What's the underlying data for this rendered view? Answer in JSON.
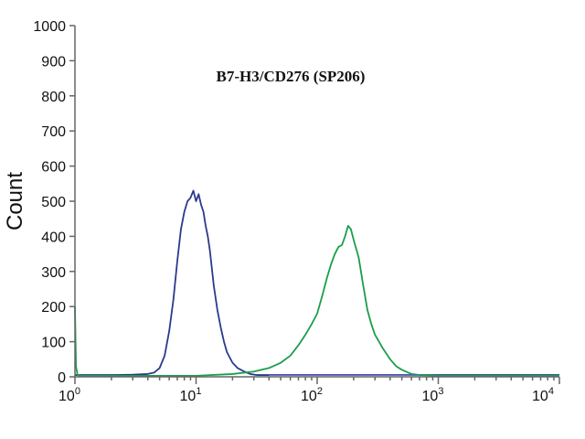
{
  "chart_data": {
    "type": "line",
    "title": "B7-H3/CD276 (SP206)",
    "xlabel": "",
    "ylabel": "Count",
    "x_scale": "log",
    "xlim": [
      1,
      10000
    ],
    "ylim": [
      0,
      1000
    ],
    "y_ticks": [
      0,
      100,
      200,
      300,
      400,
      500,
      600,
      700,
      800,
      900,
      1000
    ],
    "y_tick_labels": [
      "0",
      "100",
      "200",
      "300",
      "400",
      "500",
      "600",
      "700",
      "800",
      "900",
      "1000"
    ],
    "x_ticks": [
      1,
      10,
      100,
      1000,
      10000
    ],
    "x_tick_labels": [
      {
        "base": "10",
        "exp": "0"
      },
      {
        "base": "10",
        "exp": "1"
      },
      {
        "base": "10",
        "exp": "2"
      },
      {
        "base": "10",
        "exp": "3"
      },
      {
        "base": "10",
        "exp": "4"
      }
    ],
    "grid": false,
    "legend": "none",
    "series": [
      {
        "color": "#2b3a8c",
        "x": [
          1,
          2,
          3,
          4,
          4.5,
          5,
          5.5,
          6,
          6.5,
          7,
          7.5,
          8,
          8.5,
          9,
          9.5,
          10,
          10.5,
          11,
          11.5,
          12,
          12.5,
          13,
          14,
          15,
          16,
          17,
          18,
          20,
          22,
          25,
          28,
          32,
          40,
          60,
          100,
          1000,
          10000
        ],
        "y": [
          5,
          5,
          6,
          8,
          12,
          25,
          60,
          130,
          220,
          330,
          420,
          470,
          500,
          510,
          530,
          500,
          520,
          490,
          470,
          430,
          400,
          360,
          260,
          190,
          140,
          100,
          70,
          40,
          25,
          15,
          8,
          5,
          5,
          5,
          5,
          5,
          5
        ]
      },
      {
        "color": "#1a9e4a",
        "x": [
          1,
          1.02,
          1.05,
          1.1,
          2,
          5,
          10,
          20,
          30,
          40,
          50,
          60,
          70,
          80,
          90,
          100,
          110,
          120,
          130,
          140,
          150,
          160,
          170,
          180,
          190,
          200,
          220,
          240,
          260,
          280,
          300,
          350,
          400,
          450,
          500,
          600,
          700,
          1000,
          10000
        ],
        "y": [
          200,
          30,
          5,
          3,
          3,
          3,
          3,
          8,
          15,
          25,
          40,
          60,
          90,
          120,
          150,
          180,
          230,
          280,
          320,
          350,
          370,
          375,
          400,
          430,
          420,
          390,
          340,
          260,
          190,
          150,
          120,
          80,
          50,
          30,
          20,
          8,
          5,
          3,
          3
        ]
      },
      {
        "color": "#6a6ad8",
        "x": [
          40,
          60,
          100,
          200,
          400,
          700
        ],
        "y": [
          4,
          4,
          4,
          4,
          4,
          4
        ]
      }
    ]
  }
}
